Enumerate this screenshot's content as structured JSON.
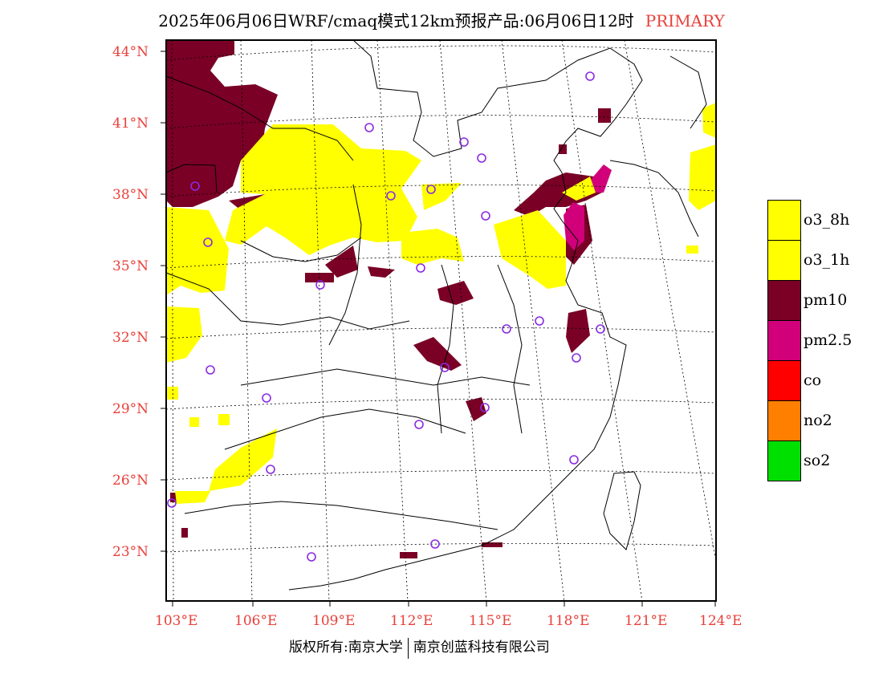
{
  "title": {
    "main": "2025年06月06日WRF/cmaq模式12km预报产品:06月06日12时",
    "tag": "PRIMARY"
  },
  "axes": {
    "lat_labels": [
      "44°N",
      "41°N",
      "38°N",
      "35°N",
      "32°N",
      "29°N",
      "26°N",
      "23°N"
    ],
    "lon_labels": [
      "103°E",
      "106°E",
      "109°E",
      "112°E",
      "115°E",
      "118°E",
      "121°E",
      "124°E"
    ],
    "label_color": "#e8403a"
  },
  "legend": [
    {
      "label": "o3_8h",
      "color": "#ffff00"
    },
    {
      "label": "o3_1h",
      "color": "#ffff00"
    },
    {
      "label": "pm10",
      "color": "#7a0026"
    },
    {
      "label": "pm2.5",
      "color": "#d1007a"
    },
    {
      "label": "co",
      "color": "#ff0000"
    },
    {
      "label": "no2",
      "color": "#ff7f00"
    },
    {
      "label": "so2",
      "color": "#00e000"
    }
  ],
  "footer": {
    "left": "版权所有:南京大学",
    "right": "南京创蓝科技有限公司"
  }
}
